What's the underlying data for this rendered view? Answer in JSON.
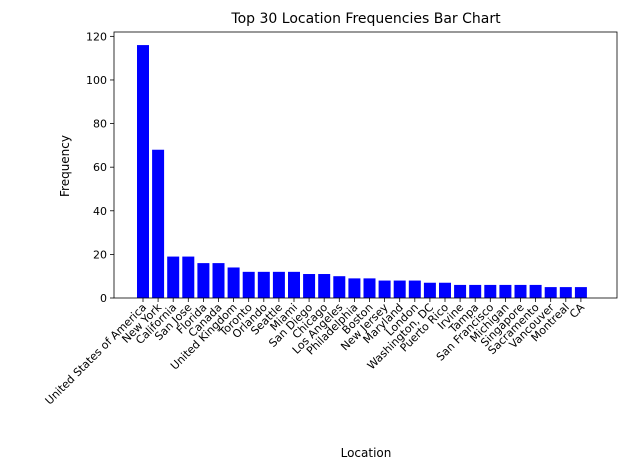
{
  "chart_data": {
    "type": "bar",
    "title": "Top 30 Location Frequencies Bar Chart",
    "xlabel": "Location",
    "ylabel": "Frequency",
    "ylim": [
      0,
      122
    ],
    "yticks": [
      0,
      20,
      40,
      60,
      80,
      100,
      120
    ],
    "grid": false,
    "bar_color": "#0000ff",
    "categories": [
      "United States of America",
      "New York",
      "California",
      "San Jose",
      "Florida",
      "Canada",
      "United Kingdom",
      "Toronto",
      "Orlando",
      "Seattle",
      "Miami",
      "San Diego",
      "Chicago",
      "Los Angeles",
      "Philadelphia",
      "Boston",
      "New Jersey",
      "Maryland",
      "London",
      "Washington, DC",
      "Puerto Rico",
      "Irvine",
      "Tampa",
      "San Francisco",
      "Michigan",
      "Singapore",
      "Sacramento",
      "Vancouver",
      "Montreal",
      "CA"
    ],
    "values": [
      116,
      68,
      19,
      19,
      16,
      16,
      14,
      12,
      12,
      12,
      12,
      11,
      11,
      10,
      9,
      9,
      8,
      8,
      8,
      7,
      7,
      6,
      6,
      6,
      6,
      6,
      6,
      5,
      5,
      5
    ]
  }
}
